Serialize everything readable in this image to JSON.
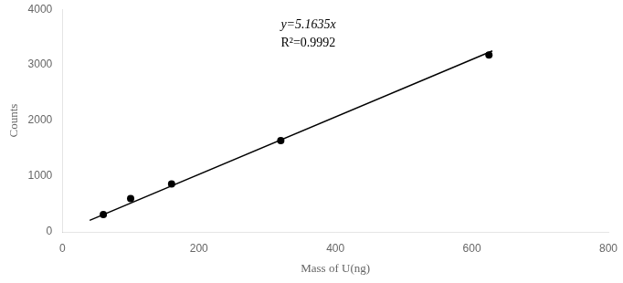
{
  "chart_data": {
    "type": "scatter",
    "xlabel": "Mass of U(ng)",
    "ylabel": "Counts",
    "series": [
      {
        "type": "line",
        "x": [
          40,
          630
        ],
        "values": [
          206.54,
          3253.005
        ],
        "color": "#000000"
      },
      {
        "type": "scatter",
        "x": [
          60,
          100,
          160,
          320,
          625
        ],
        "values": [
          310,
          600,
          860,
          1640,
          3180
        ],
        "color": "#000000",
        "marker": "circle"
      }
    ],
    "annotations": [
      "y=5.1635x",
      "R²=0.9992"
    ],
    "xlim": [
      0,
      800
    ],
    "xticks": [
      0,
      200,
      400,
      600,
      800
    ],
    "ylim": [
      0,
      4000
    ],
    "yticks": [
      0,
      1000,
      2000,
      3000,
      4000
    ],
    "grid": false
  }
}
